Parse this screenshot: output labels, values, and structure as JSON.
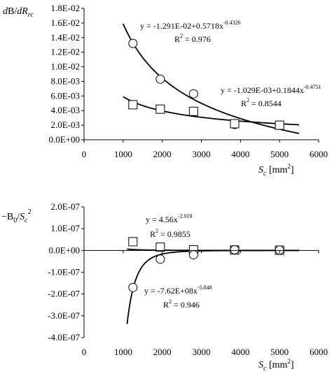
{
  "chart_data": [
    {
      "type": "scatter",
      "xlabel": "S",
      "xlabel_sub": "c",
      "xlabel_unit_open": " [mm",
      "xlabel_unit_sup": "2",
      "xlabel_unit_close": "]",
      "ylabel_d1": "d",
      "ylabel_mid": "B/",
      "ylabel_d2": "dR",
      "ylabel_sub": "rc",
      "xlim": [
        0,
        6000
      ],
      "ylim": [
        0,
        0.018
      ],
      "x_ticks": [
        0,
        1000,
        2000,
        3000,
        4000,
        5000,
        6000
      ],
      "x_tick_labels": [
        "0",
        "1000",
        "2000",
        "3000",
        "4000",
        "5000",
        "6000"
      ],
      "y_ticks": [
        0,
        0.002,
        0.004,
        0.006,
        0.008,
        0.01,
        0.012,
        0.014,
        0.016,
        0.018
      ],
      "y_tick_labels": [
        "0.0E+00",
        "2.0E-03",
        "4.0E-03",
        "6.0E-03",
        "8.0E-03",
        "1.0E-02",
        "1.2E-02",
        "1.4E-02",
        "1.6E-02",
        "1.8E-02"
      ],
      "grid": false,
      "series": [
        {
          "marker": "circle",
          "x": [
            1250,
            1950,
            2800,
            3850,
            5000
          ],
          "y": [
            0.0132,
            0.0083,
            0.0063,
            0.0021,
            0.002
          ],
          "fit": {
            "a": -0.01291,
            "b": 0.5718,
            "p": -0.4326,
            "x_range": [
              1000,
              5500
            ]
          },
          "equation_text": "y = -1.291E-02+0.5718x",
          "equation_exp": "-0.4326",
          "r2_label": "R",
          "r2_sup": "2",
          "r2_value": " = 0.976"
        },
        {
          "marker": "square",
          "x": [
            1250,
            1950,
            2800,
            3850,
            5000
          ],
          "y": [
            0.0048,
            0.0042,
            0.0039,
            0.0022,
            0.002
          ],
          "fit": {
            "a": -0.001029,
            "b": 0.1844,
            "p": -0.4751,
            "x_range": [
              1000,
              5500
            ]
          },
          "equation_text": "y = -1.029E-03+0.1844x",
          "equation_exp": "-0.4751",
          "r2_label": "R",
          "r2_sup": "2",
          "r2_value": " = 0.8544"
        }
      ]
    },
    {
      "type": "scatter",
      "xlabel": "S",
      "xlabel_sub": "c",
      "xlabel_unit_open": " [mm",
      "xlabel_unit_sup": "2",
      "xlabel_unit_close": "]",
      "ylabel_pre": "−B",
      "ylabel_sub0": "0",
      "ylabel_slash": "/",
      "ylabel_s": "S",
      "ylabel_subc": "c",
      "ylabel_sup": "2",
      "xlim": [
        0,
        6000
      ],
      "ylim": [
        -4e-07,
        2e-07
      ],
      "x_ticks": [
        0,
        1000,
        2000,
        3000,
        4000,
        5000,
        6000
      ],
      "x_tick_labels": [
        "0",
        "1000",
        "2000",
        "3000",
        "4000",
        "5000",
        "6000"
      ],
      "y_ticks": [
        2e-07,
        1e-07,
        0,
        -1e-07,
        -2e-07,
        -3e-07,
        -4e-07
      ],
      "y_tick_labels": [
        "2.0E-07",
        "1.0E-07",
        "0.0E+00",
        "-1.0E-07",
        "-2.0E-07",
        "-3.0E-07",
        "-4.0E-07"
      ],
      "grid": false,
      "series": [
        {
          "marker": "square",
          "x": [
            1250,
            1950,
            2800,
            3850,
            5000
          ],
          "y": [
            4e-08,
            1.5e-08,
            3e-09,
            2e-09,
            1e-09
          ],
          "fit": {
            "kind": "power",
            "c": 4.56,
            "p": -2.919,
            "x_range": [
              1100,
              5500
            ]
          },
          "equation_text": "y = 4.56x",
          "equation_exp": "-2.919",
          "r2_label": "R",
          "r2_sup": "2",
          "r2_value": " = 0.9855"
        },
        {
          "marker": "circle",
          "x": [
            1250,
            1950,
            2800,
            3850,
            5000
          ],
          "y": [
            -1.7e-07,
            -4e-08,
            -2e-08,
            3e-09,
            2e-09
          ],
          "fit": {
            "kind": "power",
            "c": -762000000,
            "p": -5.048,
            "x_range": [
              1100,
              5500
            ]
          },
          "equation_text": "y = -7.62E+08x",
          "equation_exp": "-5.048",
          "r2_label": "R",
          "r2_sup": "2",
          "r2_value": " = 0.946"
        }
      ]
    }
  ]
}
